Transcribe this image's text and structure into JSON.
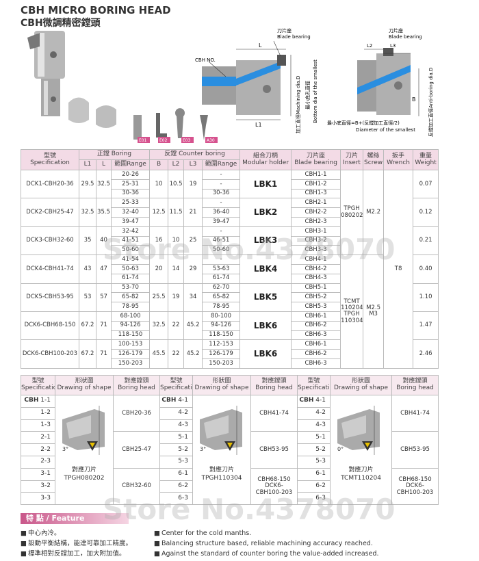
{
  "header": {
    "title": "CBH MICRO BORING HEAD",
    "subtitle": "CBH微調精密鏜頭"
  },
  "diagram_left": {
    "blade_zh": "刀片座",
    "blade_en": "Blade bearing",
    "cbh_no": "CBH NO.",
    "L": "L",
    "L1": "L1",
    "dia_label": "加工直徑Machining dia.D",
    "bottom_zh": "最小底孔直徑",
    "bottom_en": "Bottom dia of the smallest"
  },
  "diagram_right": {
    "blade_zh": "刀片座",
    "blade_en": "Blade bearing",
    "L2": "L2",
    "L3": "L3",
    "B": "B",
    "dia_label": "反鏜加工直徑Anti-boring dia.D",
    "formula": "最小底直徑=B+(反鏜加工直徑/2)",
    "formula_en": "Diameter of the smallest"
  },
  "accessories": [
    "E01",
    "E02",
    "E03",
    "A30"
  ],
  "main_table": {
    "header_row1": [
      "型號",
      "正鏜 Boring",
      "反鏜 Counter boring",
      "組合刀柄",
      "刀片座",
      "刀片",
      "螺絲",
      "扳手",
      "重量"
    ],
    "header_row2": [
      "Specification",
      "L1",
      "L",
      "範圍Range",
      "B",
      "L2",
      "L3",
      "範圍Range",
      "Modular holder",
      "Blade bearing",
      "Insert",
      "Screw",
      "Wrench",
      "Weight"
    ],
    "rows": [
      {
        "spec": "DCK1-CBH20-36",
        "L1": "29.5",
        "L": "32.5",
        "range": [
          "20-26",
          "25-31",
          "30-36"
        ],
        "B": "10",
        "L2": "10.5",
        "L3": "19",
        "counter": [
          "-",
          "-",
          "30-36"
        ],
        "holder": "LBK1",
        "blade": [
          "CBH1-1",
          "CBH1-2",
          "CBH1-3"
        ],
        "weight": "0.07"
      },
      {
        "spec": "DCK2-CBH25-47",
        "L1": "32.5",
        "L": "35.5",
        "range": [
          "25-33",
          "32-40",
          "39-47"
        ],
        "B": "12.5",
        "L2": "11.5",
        "L3": "21",
        "counter": [
          "-",
          "36-40",
          "39-47"
        ],
        "holder": "LBK2",
        "blade": [
          "CBH2-1",
          "CBH2-2",
          "CBH2-3"
        ],
        "weight": "0.12"
      },
      {
        "spec": "DCK3-CBH32-60",
        "L1": "35",
        "L": "40",
        "range": [
          "32-42",
          "41-51",
          "50-60"
        ],
        "B": "16",
        "L2": "10",
        "L3": "25",
        "counter": [
          "-",
          "46-51",
          "50-60"
        ],
        "holder": "LBK3",
        "blade": [
          "CBH3-1",
          "CBH3-2",
          "CBH3-3"
        ],
        "weight": "0.21"
      },
      {
        "spec": "DCK4-CBH41-74",
        "L1": "43",
        "L": "47",
        "range": [
          "41-54",
          "50-63",
          "61-74"
        ],
        "B": "20",
        "L2": "14",
        "L3": "29",
        "counter": [
          "-",
          "53-63",
          "61-74"
        ],
        "holder": "LBK4",
        "blade": [
          "CBH4-1",
          "CBH4-2",
          "CBH4-3"
        ],
        "weight": "0.40"
      },
      {
        "spec": "DCK5-CBH53-95",
        "L1": "53",
        "L": "57",
        "range": [
          "53-70",
          "65-82",
          "78-95"
        ],
        "B": "25.5",
        "L2": "19",
        "L3": "34",
        "counter": [
          "62-70",
          "65-82",
          "78-95"
        ],
        "holder": "LBK5",
        "blade": [
          "CBH5-1",
          "CBH5-2",
          "CBH5-3"
        ],
        "weight": "1.10"
      },
      {
        "spec": "DCK6-CBH68-150",
        "L1": "67.2",
        "L": "71",
        "range": [
          "68-100",
          "94-126",
          "118-150"
        ],
        "B": "32.5",
        "L2": "22",
        "L3": "45.2",
        "counter": [
          "80-100",
          "94-126",
          "118-150"
        ],
        "holder": "LBK6",
        "blade": [
          "CBH6-1",
          "CBH6-2",
          "CBH6-3"
        ],
        "weight": "1.47"
      },
      {
        "spec": "DCK6-CBH100-203",
        "L1": "67.2",
        "L": "71",
        "range": [
          "100-153",
          "126-179",
          "150-203"
        ],
        "B": "45.5",
        "L2": "22",
        "L3": "45.2",
        "counter": [
          "112-153",
          "126-179",
          "150-203"
        ],
        "holder": "LBK6",
        "blade": [
          "CBH6-1",
          "CBH6-2",
          "CBH6-3"
        ],
        "weight": "2.46"
      }
    ],
    "insert": [
      "TPGH\n080202",
      "TCMT\n110204\nTPGH\n110304"
    ],
    "screw": [
      "M2.2",
      "M2.5\nM3"
    ],
    "wrench": "T8"
  },
  "shape_table": {
    "headers_zh": [
      "型號",
      "形狀圖",
      "對應鏜頭"
    ],
    "headers_en": [
      "Specification",
      "Drawing of shape",
      "Boring head"
    ],
    "panels": [
      {
        "prefix": "CBH",
        "specs": [
          "1-1",
          "1-2",
          "1-3",
          "2-1",
          "2-2",
          "2-3",
          "3-1",
          "3-2",
          "3-3"
        ],
        "heads": [
          "CBH20-36",
          "CBH25-47",
          "CBH32-60"
        ],
        "angle": "3°",
        "caption": "對應刀片",
        "insert": "TPGH080202"
      },
      {
        "prefix": "CBH",
        "specs": [
          "4-1",
          "4-2",
          "4-3",
          "5-1",
          "5-2",
          "5-3",
          "6-1",
          "6-2",
          "6-3"
        ],
        "heads": [
          "CBH41-74",
          "CBH53-95",
          "CBH68-150\nDCK6-\nCBH100-203"
        ],
        "angle": "3°",
        "caption": "對應刀片",
        "insert": "TPGH110304"
      },
      {
        "prefix": "CBH",
        "specs": [
          "4-1",
          "4-2",
          "4-3",
          "5-1",
          "5-2",
          "5-3",
          "6-1",
          "6-2",
          "6-3"
        ],
        "heads": [
          "CBH41-74",
          "CBH53-95",
          "CBH68-150\nDCK6-\nCBH100-203"
        ],
        "angle": "0°",
        "caption": "對應刀片",
        "insert": "TCMT110204"
      }
    ]
  },
  "features": {
    "title": "特 點 / Feature",
    "zh": [
      "中心內冷。",
      "設動平衡結構，能達可靠加工精度。",
      "標準相對反鏜加工，加大附加值。"
    ],
    "en": [
      "Center for the cold manths.",
      "Balancing structure based, reliable machining accuracy reached.",
      "Against the standard of counter boring the value-added increased."
    ]
  },
  "watermark": [
    "Store No.4378070",
    "Store No.4378070"
  ]
}
